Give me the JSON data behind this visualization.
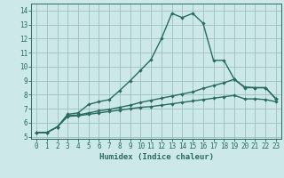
{
  "xlabel": "Humidex (Indice chaleur)",
  "background_color": "#cce8e8",
  "grid_color": "#9bbfbf",
  "line_color": "#2a6b60",
  "xlim": [
    -0.5,
    23.5
  ],
  "ylim": [
    4.85,
    14.5
  ],
  "yticks": [
    5,
    6,
    7,
    8,
    9,
    10,
    11,
    12,
    13,
    14
  ],
  "xticks": [
    0,
    1,
    2,
    3,
    4,
    5,
    6,
    7,
    8,
    9,
    10,
    11,
    12,
    13,
    14,
    15,
    16,
    17,
    18,
    19,
    20,
    21,
    22,
    23
  ],
  "line1_x": [
    0,
    1,
    2,
    3,
    4,
    5,
    6,
    7,
    8,
    9,
    10,
    11,
    12,
    13,
    14,
    15,
    16,
    17,
    18,
    19,
    20,
    21,
    22,
    23
  ],
  "line1_y": [
    5.3,
    5.3,
    5.7,
    6.6,
    6.7,
    7.3,
    7.5,
    7.65,
    8.3,
    9.0,
    9.75,
    10.5,
    12.0,
    13.8,
    13.5,
    13.8,
    13.1,
    10.45,
    10.45,
    9.1,
    8.5,
    8.5,
    8.5,
    7.7
  ],
  "line2_x": [
    0,
    1,
    2,
    3,
    4,
    5,
    6,
    7,
    8,
    9,
    10,
    11,
    12,
    13,
    14,
    15,
    16,
    17,
    18,
    19,
    20,
    21,
    22,
    23
  ],
  "line2_y": [
    5.3,
    5.3,
    5.7,
    6.5,
    6.55,
    6.7,
    6.85,
    6.95,
    7.1,
    7.25,
    7.45,
    7.6,
    7.75,
    7.9,
    8.05,
    8.2,
    8.45,
    8.65,
    8.85,
    9.1,
    8.55,
    8.5,
    8.5,
    7.7
  ],
  "line3_x": [
    0,
    1,
    2,
    3,
    4,
    5,
    6,
    7,
    8,
    9,
    10,
    11,
    12,
    13,
    14,
    15,
    16,
    17,
    18,
    19,
    20,
    21,
    22,
    23
  ],
  "line3_y": [
    5.3,
    5.3,
    5.7,
    6.45,
    6.5,
    6.6,
    6.7,
    6.8,
    6.9,
    7.0,
    7.1,
    7.15,
    7.25,
    7.35,
    7.45,
    7.55,
    7.65,
    7.75,
    7.85,
    7.95,
    7.7,
    7.7,
    7.65,
    7.5
  ],
  "markersize": 2.2,
  "linewidth": 1.0,
  "tick_fontsize": 5.5,
  "xlabel_fontsize": 6.5
}
